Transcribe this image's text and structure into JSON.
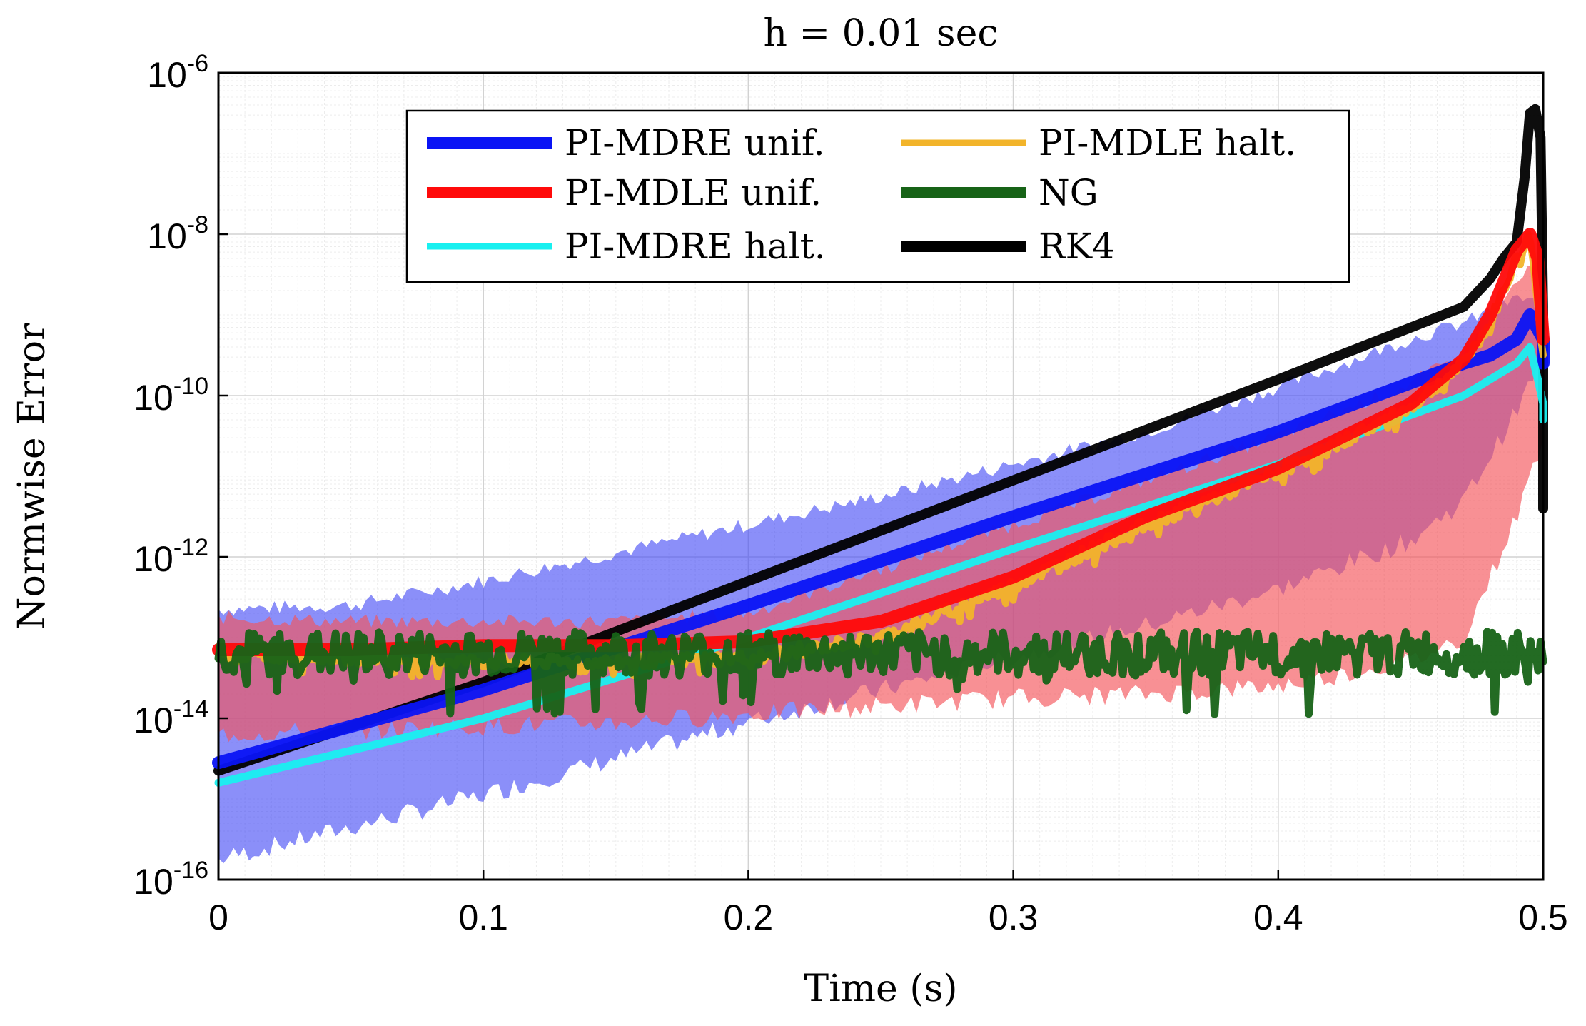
{
  "chart_data": {
    "type": "line",
    "title": "h = 0.01 sec",
    "xlabel": "Time (s)",
    "ylabel": "Normwise Error",
    "xlim": [
      0,
      0.5
    ],
    "ylim_log10": [
      -16,
      -6
    ],
    "yscale": "log",
    "grid": true,
    "x_ticks": [
      {
        "value": 0,
        "label": "0"
      },
      {
        "value": 0.1,
        "label": "0.1"
      },
      {
        "value": 0.2,
        "label": "0.2"
      },
      {
        "value": 0.3,
        "label": "0.3"
      },
      {
        "value": 0.4,
        "label": "0.4"
      },
      {
        "value": 0.5,
        "label": "0.5"
      }
    ],
    "y_ticks": [
      {
        "exp": -16,
        "base": "10",
        "sup": "-16"
      },
      {
        "exp": -14,
        "base": "10",
        "sup": "-14"
      },
      {
        "exp": -12,
        "base": "10",
        "sup": "-12"
      },
      {
        "exp": -10,
        "base": "10",
        "sup": "-10"
      },
      {
        "exp": -8,
        "base": "10",
        "sup": "-8"
      },
      {
        "exp": -6,
        "base": "10",
        "sup": "-6"
      }
    ],
    "legend_position": "top",
    "legend": [
      {
        "label": "PI-MDRE unif.",
        "color": "#0a14f5"
      },
      {
        "label": "PI-MDLE halt.",
        "color": "#f2b42a"
      },
      {
        "label": "PI-MDLE unif.",
        "color": "#ff0a0a"
      },
      {
        "label": "NG",
        "color": "#176317"
      },
      {
        "label": "PI-MDRE halt.",
        "color": "#19f0f0"
      },
      {
        "label": "RK4",
        "color": "#000000"
      }
    ],
    "bands": [
      {
        "name": "PI-MDRE unif. spread",
        "color": "#3d45f5",
        "opacity": 0.6,
        "x": [
          0,
          0.05,
          0.1,
          0.15,
          0.2,
          0.25,
          0.3,
          0.35,
          0.4,
          0.45,
          0.47,
          0.49,
          0.5
        ],
        "upper_log10": [
          -12.65,
          -12.6,
          -12.3,
          -11.95,
          -11.6,
          -11.25,
          -10.85,
          -10.45,
          -9.9,
          -9.3,
          -9.1,
          -8.8,
          -8.8
        ],
        "lower_log10": [
          -15.75,
          -15.35,
          -14.95,
          -14.5,
          -14.05,
          -13.65,
          -13.25,
          -12.85,
          -12.4,
          -11.8,
          -11.3,
          -10.2,
          -9.5
        ]
      },
      {
        "name": "PI-MDLE unif. spread",
        "color": "#f5555a",
        "opacity": 0.65,
        "x": [
          0,
          0.05,
          0.1,
          0.15,
          0.2,
          0.25,
          0.3,
          0.35,
          0.4,
          0.45,
          0.47,
          0.49,
          0.5
        ],
        "upper_log10": [
          -12.75,
          -12.8,
          -12.8,
          -12.8,
          -12.7,
          -12.15,
          -11.6,
          -11.05,
          -10.5,
          -9.85,
          -9.5,
          -8.6,
          -8.3
        ],
        "lower_log10": [
          -14.2,
          -14.15,
          -14.1,
          -14.05,
          -13.95,
          -13.85,
          -13.75,
          -13.7,
          -13.6,
          -13.3,
          -13.0,
          -11.5,
          -10.5
        ]
      }
    ],
    "series": [
      {
        "name": "RK4",
        "color": "#000000",
        "width": 14,
        "x": [
          0,
          0.1,
          0.2,
          0.3,
          0.4,
          0.47,
          0.48,
          0.485,
          0.49,
          0.493,
          0.495,
          0.497,
          0.499,
          0.5,
          0.5
        ],
        "log10": [
          -14.65,
          -13.55,
          -12.3,
          -11.05,
          -9.8,
          -8.9,
          -8.55,
          -8.3,
          -8.1,
          -7.3,
          -6.5,
          -6.45,
          -6.8,
          -9.0,
          -11.4
        ]
      },
      {
        "name": "PI-MDRE unif.",
        "color": "#0a14f5",
        "width": 18,
        "x": [
          0,
          0.1,
          0.2,
          0.3,
          0.4,
          0.47,
          0.48,
          0.49,
          0.495,
          0.5,
          0.5
        ],
        "log10": [
          -14.55,
          -13.65,
          -12.6,
          -11.5,
          -10.45,
          -9.6,
          -9.5,
          -9.3,
          -9.0,
          -9.3,
          -9.6
        ]
      },
      {
        "name": "PI-MDRE halt.",
        "color": "#19f0f0",
        "width": 11,
        "x": [
          0,
          0.1,
          0.2,
          0.3,
          0.4,
          0.47,
          0.49,
          0.495,
          0.498,
          0.5,
          0.5
        ],
        "log10": [
          -14.8,
          -14.0,
          -13.0,
          -11.9,
          -10.85,
          -10.0,
          -9.6,
          -9.4,
          -9.8,
          -10.1,
          -10.3
        ]
      },
      {
        "name": "PI-MDLE halt.",
        "color": "#f2b42a",
        "width": 10,
        "x": [
          0,
          0.05,
          0.1,
          0.15,
          0.2,
          0.25,
          0.3,
          0.35,
          0.4,
          0.45,
          0.47,
          0.48,
          0.49,
          0.495,
          0.5
        ],
        "log10": [
          -13.2,
          -13.25,
          -13.3,
          -13.3,
          -13.25,
          -13.0,
          -12.35,
          -11.6,
          -10.95,
          -10.15,
          -9.6,
          -9.1,
          -8.3,
          -8.0,
          -9.5
        ],
        "noise": 0.15
      },
      {
        "name": "PI-MDLE unif.",
        "color": "#ff0a0a",
        "width": 18,
        "x": [
          0,
          0.05,
          0.1,
          0.15,
          0.2,
          0.25,
          0.3,
          0.35,
          0.4,
          0.45,
          0.47,
          0.48,
          0.49,
          0.495,
          0.498,
          0.5
        ],
        "log10": [
          -13.15,
          -13.15,
          -13.1,
          -13.1,
          -13.05,
          -12.8,
          -12.25,
          -11.5,
          -10.9,
          -10.1,
          -9.55,
          -9.0,
          -8.2,
          -8.0,
          -8.3,
          -9.3
        ]
      },
      {
        "name": "NG",
        "color": "#176317",
        "width": 11,
        "x": [
          0,
          0.1,
          0.2,
          0.3,
          0.4,
          0.5
        ],
        "log10": [
          -13.2,
          -13.2,
          -13.2,
          -13.2,
          -13.2,
          -13.2
        ],
        "noise": 0.55
      }
    ]
  }
}
